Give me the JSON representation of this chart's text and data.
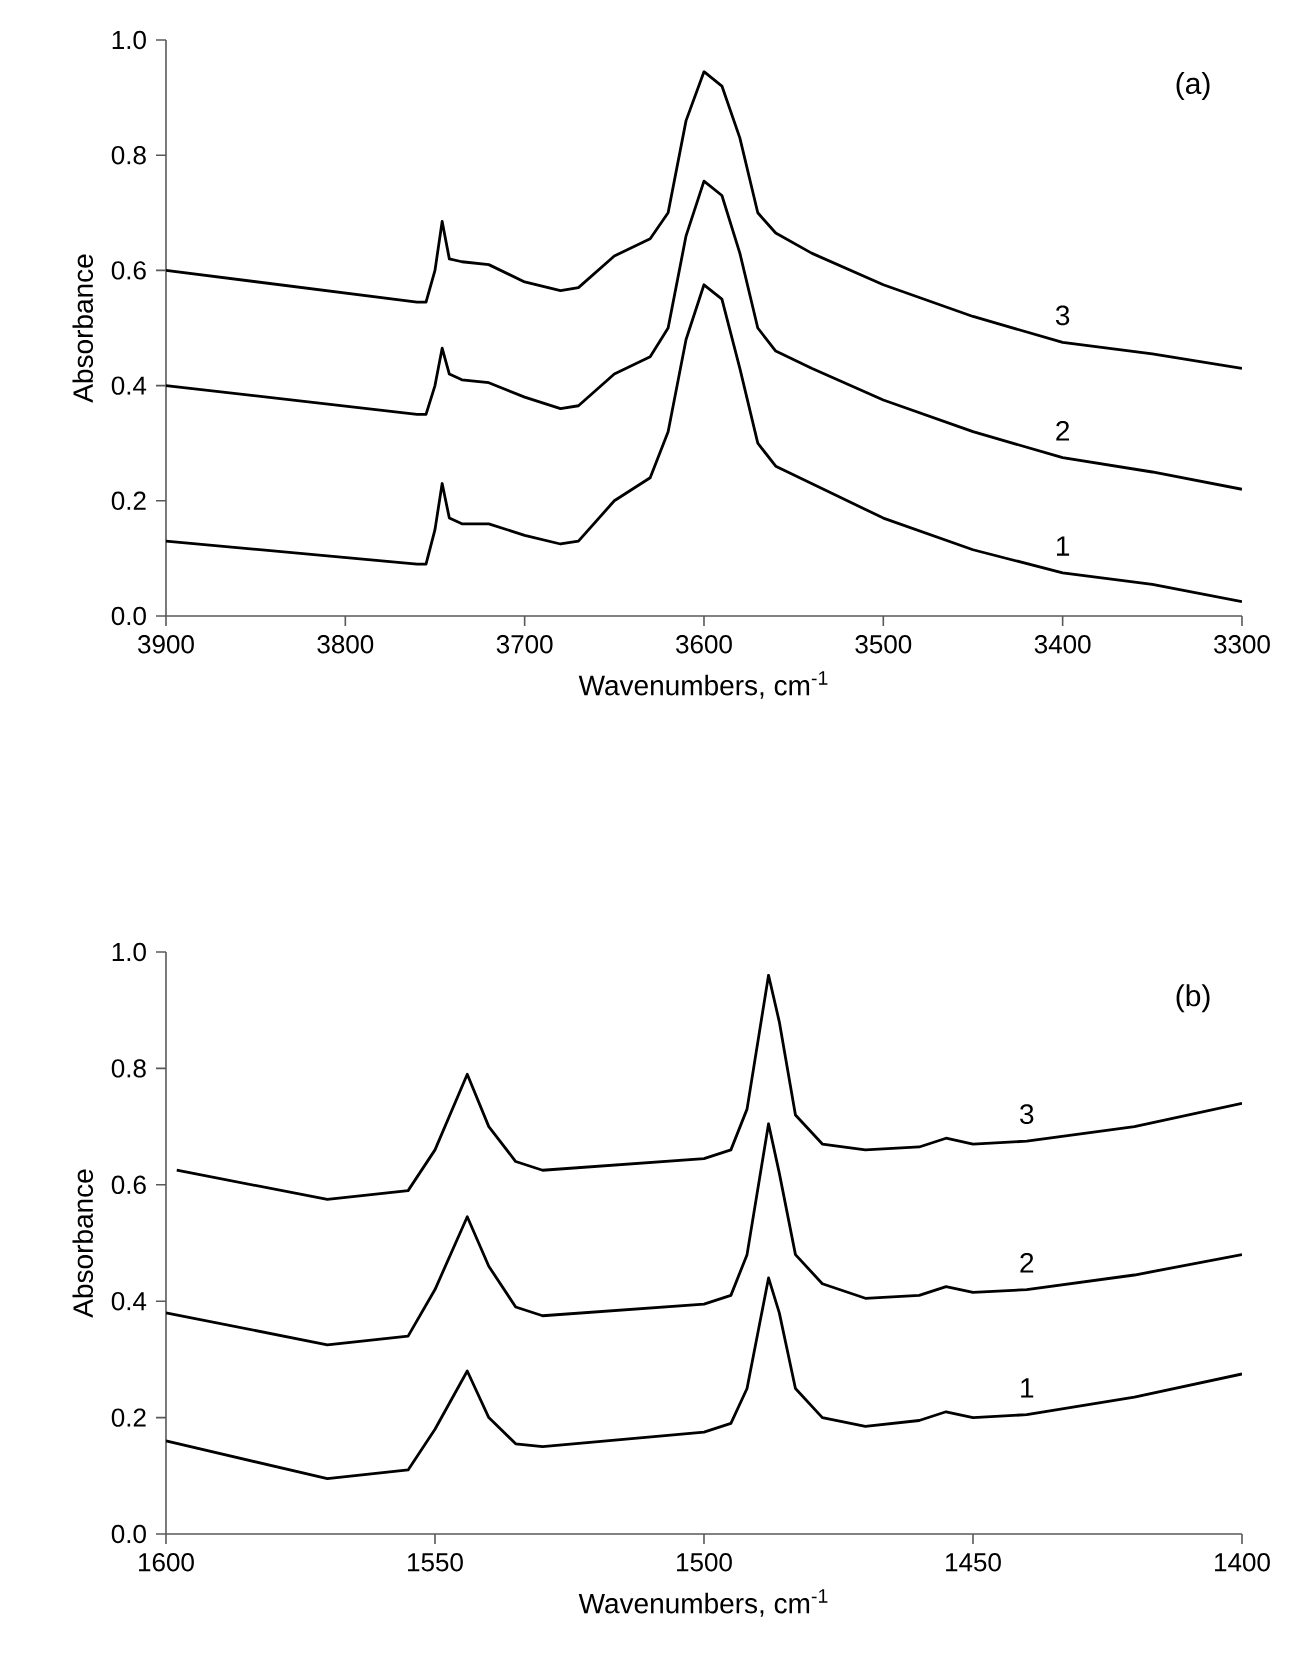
{
  "chart_data": [
    {
      "type": "line",
      "annotations": [
        "(a)"
      ],
      "xlabel": "Wavenumbers, cm$^{-1}$",
      "ylabel": "Absorbance",
      "xlim": [
        3900,
        3300
      ],
      "ylim": [
        0,
        1.0
      ],
      "xticks": [
        3900,
        3800,
        3700,
        3600,
        3500,
        3400,
        3300
      ],
      "yticks": [
        {
          "value": 0,
          "label": "0.0"
        },
        {
          "value": 0.2,
          "label": "0.2"
        },
        {
          "value": 0.4,
          "label": "0.4"
        },
        {
          "value": 0.6,
          "label": "0.6"
        },
        {
          "value": 0.8,
          "label": "0.8"
        },
        {
          "value": 1.0,
          "label": "1.0"
        }
      ],
      "grid": false,
      "legend": false,
      "marker": "none",
      "line_style": "solid",
      "x": [
        3900,
        3760,
        3755,
        3750,
        3746,
        3742,
        3735,
        3720,
        3700,
        3680,
        3670,
        3650,
        3630,
        3620,
        3610,
        3600,
        3590,
        3580,
        3570,
        3560,
        3540,
        3500,
        3450,
        3400,
        3350,
        3300
      ],
      "series": [
        {
          "name": "1",
          "color": "#000000",
          "values": [
            0.13,
            0.09,
            0.09,
            0.15,
            0.23,
            0.17,
            0.16,
            0.16,
            0.14,
            0.125,
            0.13,
            0.2,
            0.24,
            0.32,
            0.48,
            0.575,
            0.55,
            0.43,
            0.3,
            0.26,
            0.23,
            0.17,
            0.115,
            0.075,
            0.055,
            0.025
          ]
        },
        {
          "name": "2",
          "color": "#000000",
          "values": [
            0.4,
            0.35,
            0.35,
            0.4,
            0.465,
            0.42,
            0.41,
            0.405,
            0.38,
            0.36,
            0.365,
            0.42,
            0.45,
            0.5,
            0.66,
            0.755,
            0.73,
            0.63,
            0.5,
            0.46,
            0.43,
            0.375,
            0.32,
            0.275,
            0.25,
            0.22
          ]
        },
        {
          "name": "3",
          "color": "#000000",
          "values": [
            0.6,
            0.545,
            0.545,
            0.6,
            0.685,
            0.62,
            0.615,
            0.61,
            0.58,
            0.565,
            0.57,
            0.625,
            0.655,
            0.7,
            0.86,
            0.945,
            0.92,
            0.83,
            0.7,
            0.665,
            0.63,
            0.575,
            0.52,
            0.475,
            0.455,
            0.43
          ]
        }
      ]
    },
    {
      "type": "line",
      "annotations": [
        "(b)"
      ],
      "xlabel": "Wavenumbers, cm$^{-1}$",
      "ylabel": "Absorbance",
      "xlim": [
        1600,
        1400
      ],
      "ylim": [
        0,
        1.0
      ],
      "xticks": [
        1600,
        1550,
        1500,
        1450,
        1400
      ],
      "yticks": [
        {
          "value": 0,
          "label": "0.0"
        },
        {
          "value": 0.2,
          "label": "0.2"
        },
        {
          "value": 0.4,
          "label": "0.4"
        },
        {
          "value": 0.6,
          "label": "0.6"
        },
        {
          "value": 0.8,
          "label": "0.8"
        },
        {
          "value": 1.0,
          "label": "1.0"
        }
      ],
      "grid": false,
      "legend": false,
      "marker": "none",
      "line_style": "solid",
      "x": [
        1600,
        1570,
        1555,
        1550,
        1544,
        1540,
        1535,
        1530,
        1500,
        1495,
        1492,
        1488,
        1486,
        1483,
        1478,
        1470,
        1460,
        1455,
        1450,
        1440,
        1420,
        1400
      ],
      "series": [
        {
          "name": "1",
          "color": "#000000",
          "values": [
            0.16,
            0.095,
            0.11,
            0.18,
            0.28,
            0.2,
            0.155,
            0.15,
            0.175,
            0.19,
            0.25,
            0.44,
            0.38,
            0.25,
            0.2,
            0.185,
            0.195,
            0.21,
            0.2,
            0.205,
            0.235,
            0.275
          ]
        },
        {
          "name": "2",
          "color": "#000000",
          "values": [
            0.38,
            0.325,
            0.34,
            0.42,
            0.545,
            0.46,
            0.39,
            0.375,
            0.395,
            0.41,
            0.48,
            0.705,
            0.62,
            0.48,
            0.43,
            0.405,
            0.41,
            0.425,
            0.415,
            0.42,
            0.445,
            0.48
          ]
        },
        {
          "name": "3",
          "color": "#000000",
          "x": [
            1598,
            1570,
            1555,
            1550,
            1544,
            1540,
            1535,
            1530,
            1500,
            1495,
            1492,
            1488,
            1486,
            1483,
            1478,
            1470,
            1460,
            1455,
            1450,
            1440,
            1420,
            1400
          ],
          "values": [
            0.625,
            0.575,
            0.59,
            0.66,
            0.79,
            0.7,
            0.64,
            0.625,
            0.645,
            0.66,
            0.73,
            0.96,
            0.88,
            0.72,
            0.67,
            0.66,
            0.665,
            0.68,
            0.67,
            0.675,
            0.7,
            0.74
          ]
        }
      ]
    }
  ]
}
